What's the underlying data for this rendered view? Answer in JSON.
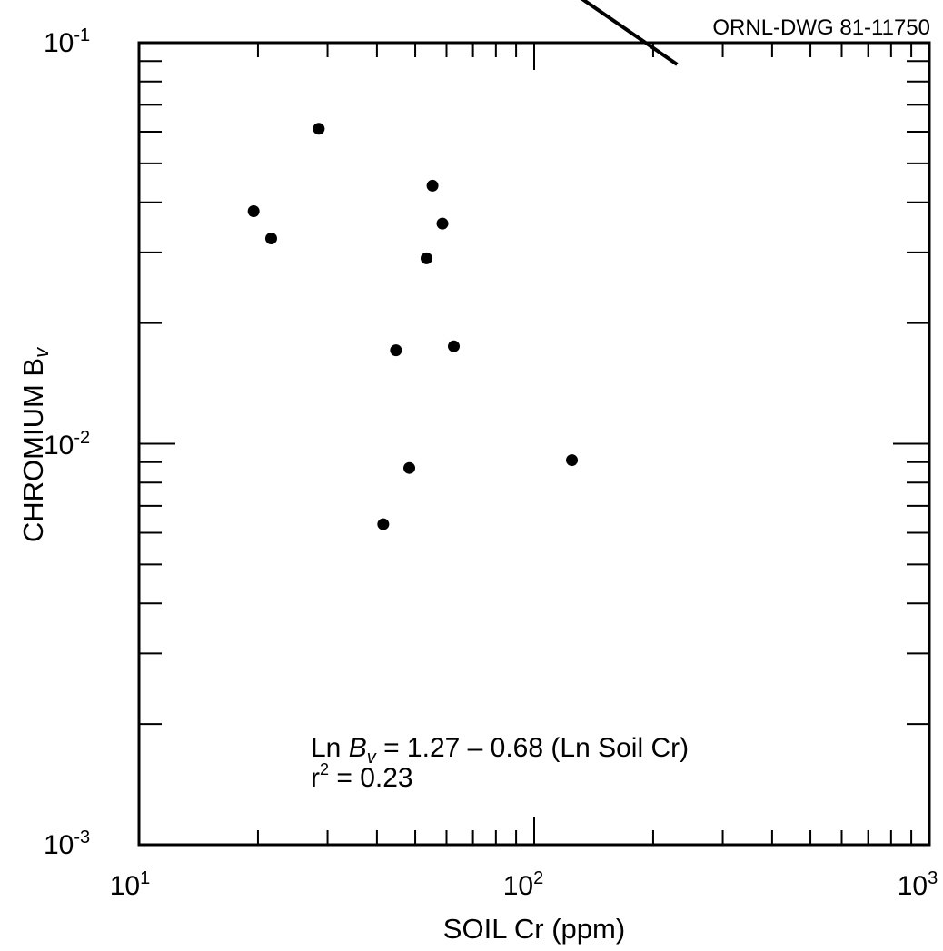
{
  "drawing_id": "ORNL-DWG 81-11750",
  "chart_data": {
    "type": "scatter",
    "x_scale": "log",
    "y_scale": "log",
    "xlim": [
      10,
      1000
    ],
    "ylim": [
      0.001,
      0.1
    ],
    "xlabel": "SOIL Cr (ppm)",
    "ylabel": {
      "main": "CHROMIUM B",
      "sub": "v"
    },
    "x_ticks": [
      {
        "base": "10",
        "exp": "1",
        "value": 10
      },
      {
        "base": "10",
        "exp": "2",
        "value": 100
      },
      {
        "base": "10",
        "exp": "3",
        "value": 1000
      }
    ],
    "y_ticks": [
      {
        "base": "10",
        "exp": "-1",
        "value": 0.1
      },
      {
        "base": "10",
        "exp": "-2",
        "value": 0.01
      },
      {
        "base": "10",
        "exp": "-3",
        "value": 0.001
      }
    ],
    "points": [
      {
        "x": 19.5,
        "y": 0.038
      },
      {
        "x": 21.6,
        "y": 0.0325
      },
      {
        "x": 28.5,
        "y": 0.061
      },
      {
        "x": 41.5,
        "y": 0.0063
      },
      {
        "x": 44.7,
        "y": 0.0171
      },
      {
        "x": 48.3,
        "y": 0.0087
      },
      {
        "x": 53.4,
        "y": 0.029
      },
      {
        "x": 55.3,
        "y": 0.044
      },
      {
        "x": 58.6,
        "y": 0.0354
      },
      {
        "x": 62.6,
        "y": 0.0175
      },
      {
        "x": 124.6,
        "y": 0.0091
      }
    ],
    "fit_line": {
      "x_start": 10,
      "x_end": 230,
      "intercept_ln": 1.27,
      "slope": -0.68
    },
    "annotation": {
      "eq_prefix": "Ln ",
      "eq_var": "B",
      "eq_var_sub": "v",
      "eq_rest": " = 1.27 – 0.68 (Ln Soil Cr)",
      "r2_base": "r",
      "r2_exp": "2",
      "r2_rest": " = 0.23"
    },
    "grid": false,
    "legend": "none"
  }
}
